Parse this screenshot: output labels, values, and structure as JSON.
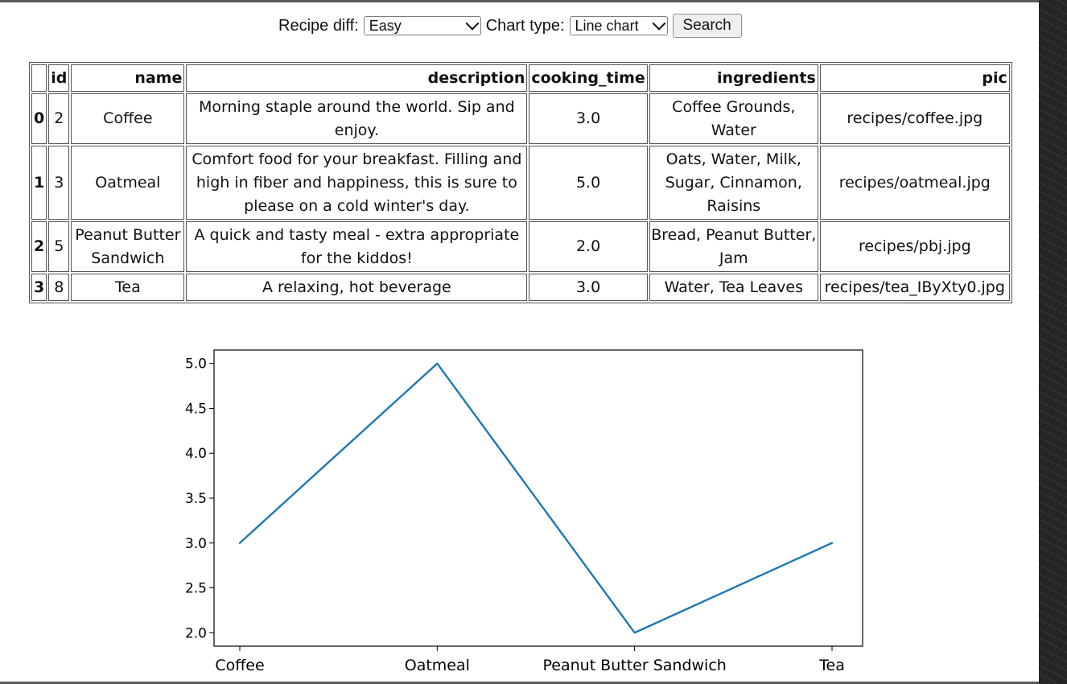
{
  "controls": {
    "recipe_diff_label": "Recipe diff:",
    "recipe_diff_value": "Easy",
    "chart_type_label": "Chart type:",
    "chart_type_value": "Line chart",
    "search_label": "Search"
  },
  "table": {
    "columns": [
      "",
      "id",
      "name",
      "description",
      "cooking_time",
      "ingredients",
      "pic"
    ],
    "rows": [
      {
        "index": "0",
        "id": "2",
        "name": "Coffee",
        "description": "Morning staple around the world. Sip and enjoy.",
        "cooking_time": "3.0",
        "ingredients": "Coffee Grounds, Water",
        "pic": "recipes/coffee.jpg"
      },
      {
        "index": "1",
        "id": "3",
        "name": "Oatmeal",
        "description": "Comfort food for your breakfast. Filling and high in fiber and happiness, this is sure to please on a cold winter's day.",
        "cooking_time": "5.0",
        "ingredients": "Oats, Water, Milk, Sugar, Cinnamon, Raisins",
        "pic": "recipes/oatmeal.jpg"
      },
      {
        "index": "2",
        "id": "5",
        "name": "Peanut Butter Sandwich",
        "description": "A quick and tasty meal - extra appropriate for the kiddos!",
        "cooking_time": "2.0",
        "ingredients": "Bread, Peanut Butter, Jam",
        "pic": "recipes/pbj.jpg"
      },
      {
        "index": "3",
        "id": "8",
        "name": "Tea",
        "description": "A relaxing, hot beverage",
        "cooking_time": "3.0",
        "ingredients": "Water, Tea Leaves",
        "pic": "recipes/tea_IByXty0.jpg"
      }
    ]
  },
  "chart_data": {
    "type": "line",
    "categories": [
      "Coffee",
      "Oatmeal",
      "Peanut Butter Sandwich",
      "Tea"
    ],
    "values": [
      3.0,
      5.0,
      2.0,
      3.0
    ],
    "ylim": [
      1.85,
      5.15
    ],
    "yticks": [
      "2.0",
      "2.5",
      "3.0",
      "3.5",
      "4.0",
      "4.5",
      "5.0"
    ],
    "title": "",
    "xlabel": "",
    "ylabel": "",
    "grid": false,
    "line_color": "#1f77b4"
  }
}
